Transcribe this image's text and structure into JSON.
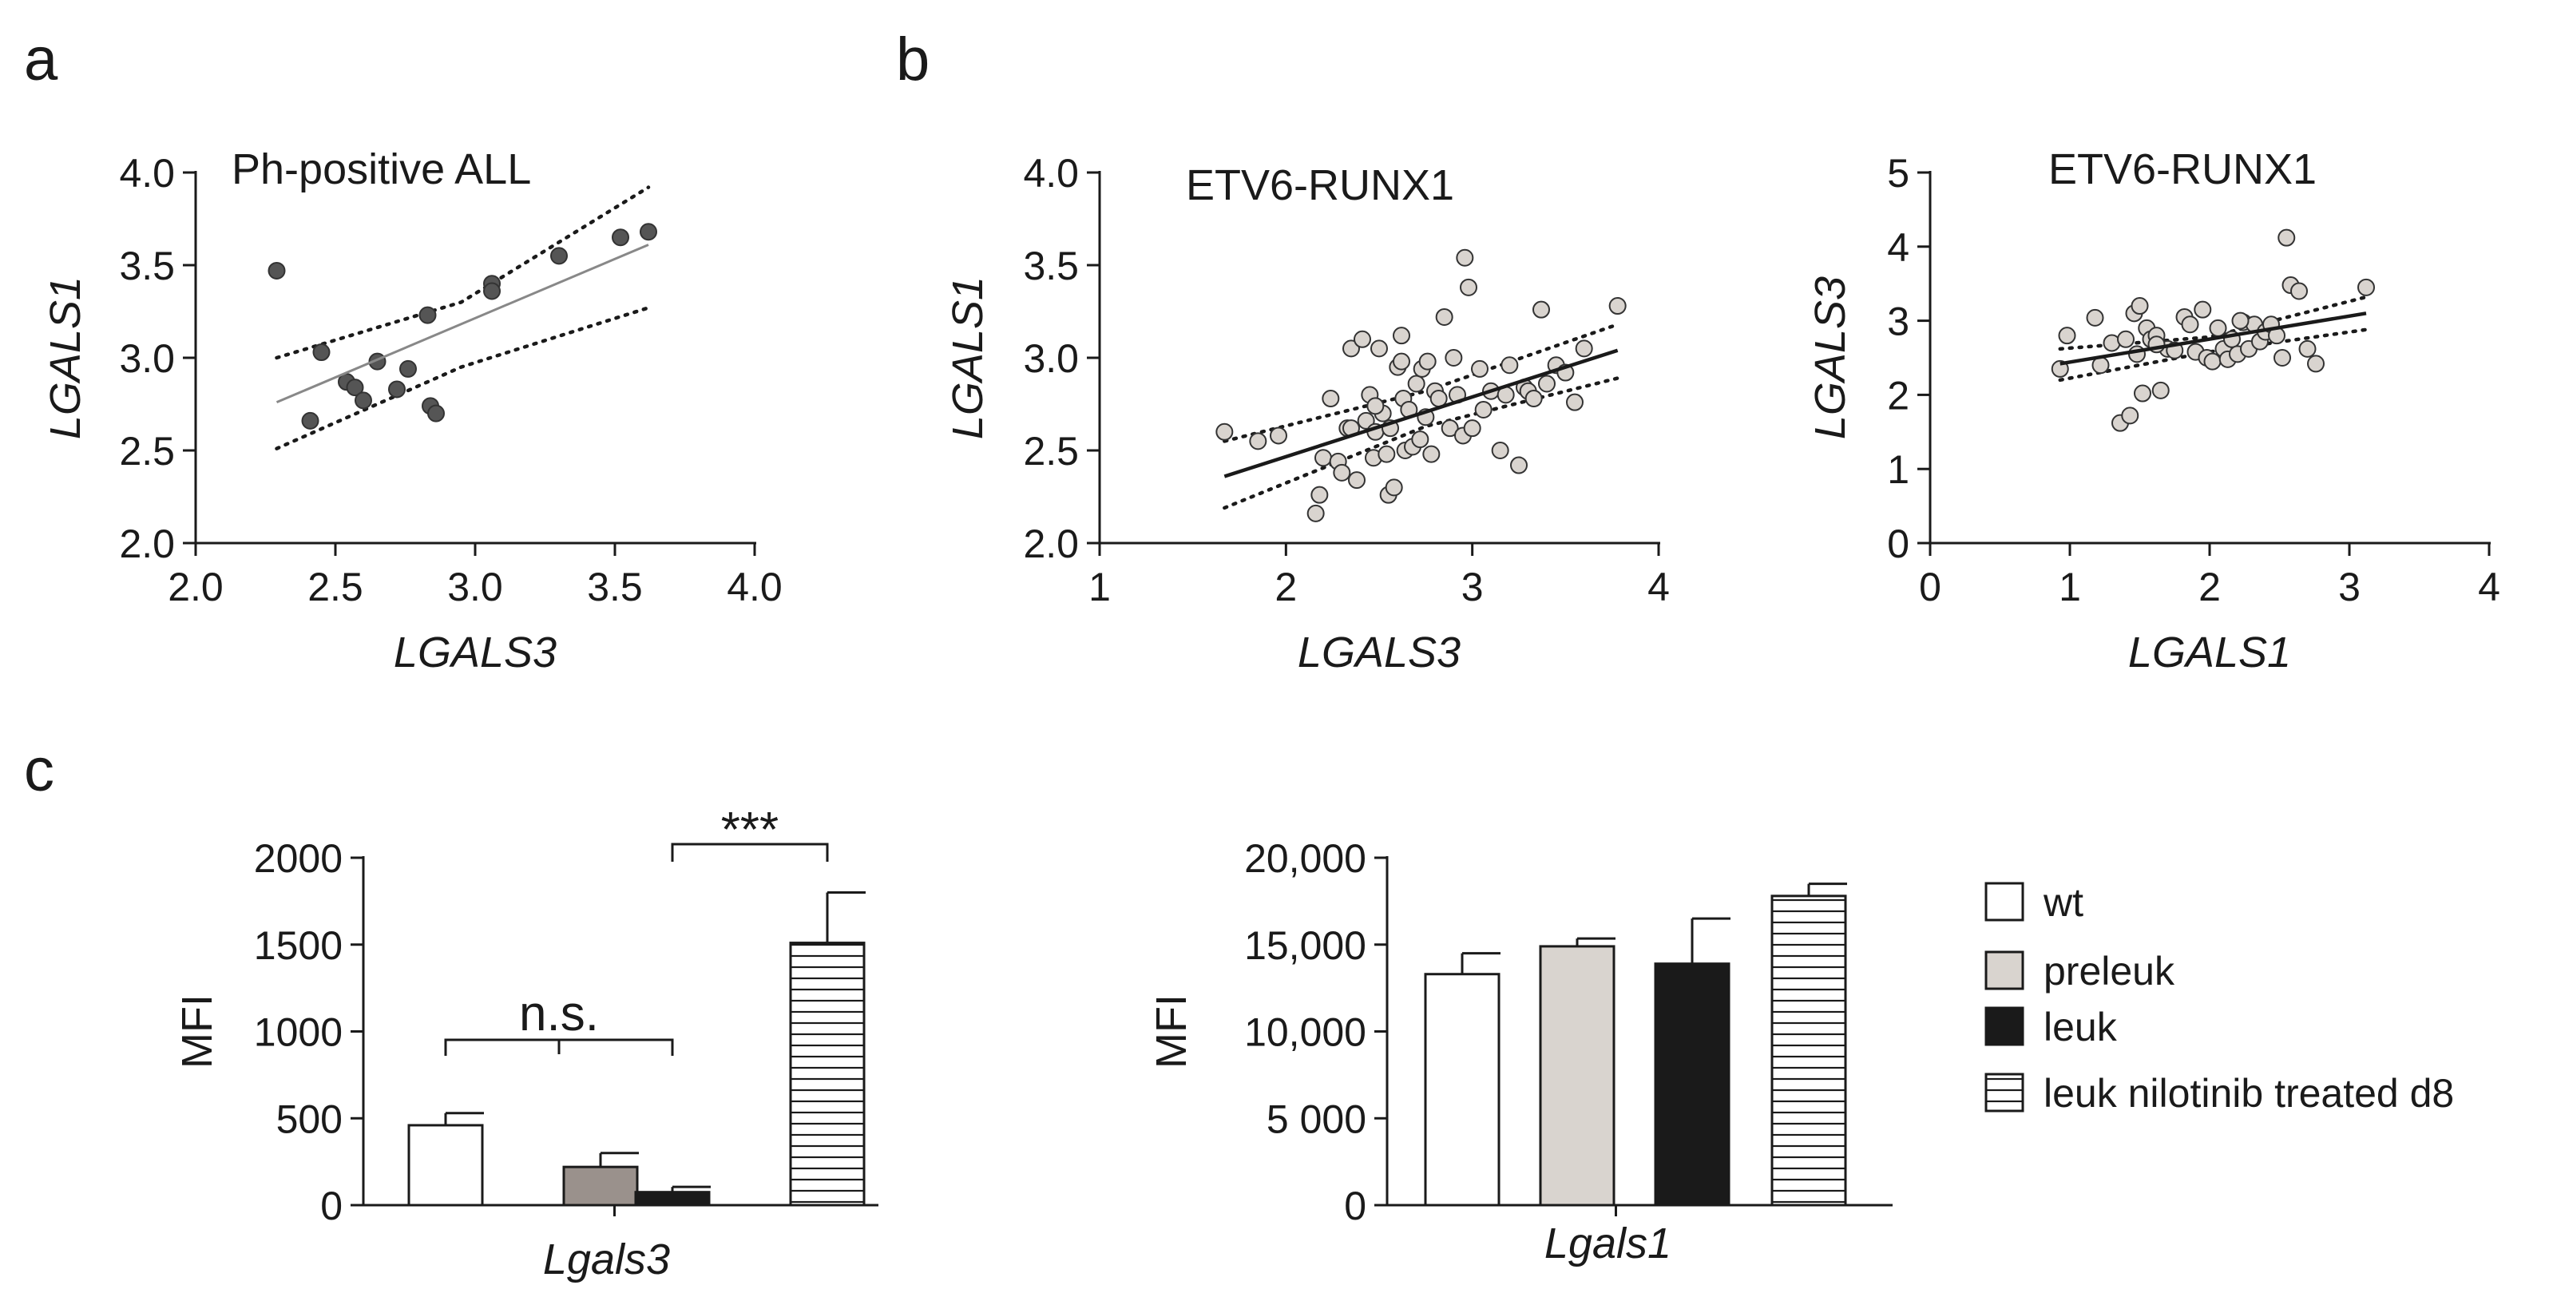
{
  "panels": {
    "a": {
      "letter": "a"
    },
    "b": {
      "letter": "b"
    },
    "c": {
      "letter": "c"
    }
  },
  "chart_data": [
    {
      "id": "a",
      "type": "scatter",
      "title": "Ph-positive ALL",
      "xlabel": "LGALS3",
      "ylabel": "LGALS1",
      "xlim": [
        2.0,
        4.0
      ],
      "ylim": [
        2.0,
        4.0
      ],
      "xticks": [
        "2.0",
        "2.5",
        "3.0",
        "3.5",
        "4.0"
      ],
      "yticks": [
        "2.0",
        "2.5",
        "3.0",
        "3.5",
        "4.0"
      ],
      "point_color": "#555555",
      "fit_color": "#888888",
      "x": [
        2.29,
        2.41,
        2.45,
        2.54,
        2.57,
        2.6,
        2.65,
        2.72,
        2.76,
        2.83,
        2.84,
        2.86,
        3.06,
        3.06,
        3.3,
        3.52,
        3.62
      ],
      "y": [
        3.47,
        2.66,
        3.03,
        2.87,
        2.84,
        2.77,
        2.98,
        2.83,
        2.94,
        3.23,
        2.74,
        2.7,
        3.4,
        3.36,
        3.55,
        3.65,
        3.68
      ],
      "fit_line": {
        "x": [
          2.29,
          3.62
        ],
        "y": [
          2.76,
          3.61
        ]
      },
      "ci_upper": {
        "x": [
          2.29,
          2.95,
          3.62
        ],
        "y": [
          3.0,
          3.3,
          3.92
        ]
      },
      "ci_lower": {
        "x": [
          2.29,
          2.95,
          3.62
        ],
        "y": [
          2.51,
          2.95,
          3.27
        ]
      }
    },
    {
      "id": "b1",
      "type": "scatter",
      "title": "ETV6-RUNX1",
      "xlabel": "LGALS3",
      "ylabel": "LGALS1",
      "xlim": [
        1,
        4
      ],
      "ylim": [
        2.0,
        4.0
      ],
      "xticks": [
        "1",
        "2",
        "3",
        "4"
      ],
      "yticks": [
        "2.0",
        "2.5",
        "3.0",
        "3.5",
        "4.0"
      ],
      "point_color": "#d9d4cf",
      "fit_color": "#1a1a1a",
      "x": [
        1.67,
        1.85,
        1.96,
        2.16,
        2.18,
        2.2,
        2.24,
        2.28,
        2.3,
        2.33,
        2.35,
        2.38,
        2.41,
        2.43,
        2.45,
        2.47,
        2.48,
        2.5,
        2.52,
        2.54,
        2.55,
        2.56,
        2.58,
        2.6,
        2.62,
        2.63,
        2.64,
        2.66,
        2.68,
        2.7,
        2.72,
        2.73,
        2.75,
        2.78,
        2.8,
        2.82,
        2.85,
        2.88,
        2.92,
        2.95,
        2.98,
        3.0,
        3.04,
        3.06,
        3.1,
        3.15,
        3.18,
        3.2,
        3.25,
        3.28,
        3.3,
        3.33,
        3.37,
        3.4,
        3.45,
        3.5,
        3.55,
        3.6,
        3.78,
        2.96,
        2.62,
        2.76,
        2.35,
        2.48,
        2.9
      ],
      "y": [
        2.6,
        2.55,
        2.58,
        2.16,
        2.26,
        2.46,
        2.78,
        2.44,
        2.38,
        2.62,
        3.05,
        2.34,
        3.1,
        2.66,
        2.8,
        2.46,
        2.6,
        3.05,
        2.7,
        2.48,
        2.26,
        2.62,
        2.3,
        2.95,
        3.12,
        2.78,
        2.5,
        2.72,
        2.52,
        2.86,
        2.56,
        2.94,
        2.68,
        2.48,
        2.82,
        2.78,
        3.22,
        2.62,
        2.8,
        2.58,
        3.38,
        2.62,
        2.94,
        2.72,
        2.82,
        2.5,
        2.8,
        2.96,
        2.42,
        2.84,
        2.82,
        2.78,
        3.26,
        2.86,
        2.96,
        2.92,
        2.76,
        3.05,
        3.28,
        3.54,
        2.98,
        2.98,
        2.62,
        2.74,
        3.0
      ],
      "fit_line": {
        "x": [
          1.67,
          3.78
        ],
        "y": [
          2.36,
          3.04
        ]
      },
      "ci_upper": {
        "x": [
          1.67,
          2.75,
          3.78
        ],
        "y": [
          2.55,
          2.82,
          3.18
        ]
      },
      "ci_lower": {
        "x": [
          1.67,
          2.75,
          3.78
        ],
        "y": [
          2.19,
          2.63,
          2.89
        ]
      }
    },
    {
      "id": "b2",
      "type": "scatter",
      "title": "ETV6-RUNX1",
      "xlabel": "LGALS1",
      "ylabel": "LGALS3",
      "xlim": [
        0,
        4
      ],
      "ylim": [
        0,
        5
      ],
      "xticks": [
        "0",
        "1",
        "2",
        "3",
        "4"
      ],
      "yticks": [
        "0",
        "1",
        "2",
        "3",
        "4",
        "5"
      ],
      "point_color": "#d9d4cf",
      "fit_color": "#1a1a1a",
      "x": [
        0.93,
        0.98,
        1.18,
        1.22,
        1.3,
        1.36,
        1.4,
        1.43,
        1.46,
        1.48,
        1.5,
        1.52,
        1.55,
        1.58,
        1.62,
        1.65,
        1.7,
        1.75,
        1.82,
        1.86,
        1.9,
        1.95,
        1.98,
        2.02,
        2.06,
        2.1,
        2.13,
        2.16,
        2.2,
        2.24,
        2.28,
        2.32,
        2.36,
        2.4,
        2.44,
        2.48,
        2.52,
        2.55,
        2.58,
        2.64,
        2.7,
        2.76,
        3.12,
        1.62,
        2.22
      ],
      "y": [
        2.35,
        2.8,
        3.04,
        2.4,
        2.7,
        1.62,
        2.75,
        1.72,
        3.1,
        2.55,
        3.2,
        2.02,
        2.9,
        2.75,
        2.8,
        2.06,
        2.62,
        2.6,
        3.05,
        2.95,
        2.58,
        3.15,
        2.5,
        2.45,
        2.9,
        2.62,
        2.48,
        2.75,
        2.55,
        2.98,
        2.62,
        2.95,
        2.72,
        2.85,
        2.95,
        2.8,
        2.5,
        4.12,
        3.48,
        3.4,
        2.62,
        2.42,
        3.45,
        2.68,
        3.0
      ],
      "fit_line": {
        "x": [
          0.93,
          3.12
        ],
        "y": [
          2.42,
          3.1
        ]
      },
      "ci_upper": {
        "x": [
          0.93,
          2.0,
          3.12
        ],
        "y": [
          2.62,
          2.78,
          3.32
        ]
      },
      "ci_lower": {
        "x": [
          0.93,
          2.0,
          3.12
        ],
        "y": [
          2.2,
          2.58,
          2.88
        ]
      }
    },
    {
      "id": "c1",
      "type": "bar",
      "xlabel": "Lgals3",
      "ylabel": "MFI",
      "ylim": [
        0,
        2000
      ],
      "yticks": [
        "0",
        "500",
        "1000",
        "1500",
        "2000"
      ],
      "categories": [
        "wt",
        "preleuk",
        "leuk",
        "leuk nilotinib treated d8"
      ],
      "values": [
        460,
        220,
        75,
        1510
      ],
      "errors": [
        70,
        80,
        30,
        290
      ],
      "fills": [
        "#ffffff",
        "#9a918c",
        "#1a1a1a",
        "stripes"
      ],
      "annotations": [
        {
          "label": "n.s.",
          "from": 0,
          "to": 2
        },
        {
          "label": "***",
          "from": 2,
          "to": 3
        }
      ]
    },
    {
      "id": "c2",
      "type": "bar",
      "xlabel": "Lgals1",
      "ylabel": "MFI",
      "ylim": [
        0,
        20000
      ],
      "yticks": [
        "0",
        "5 000",
        "10,000",
        "15,000",
        "20,000"
      ],
      "categories": [
        "wt",
        "preleuk",
        "leuk",
        "leuk nilotinib treated d8"
      ],
      "values": [
        13300,
        14900,
        13900,
        17800
      ],
      "errors": [
        1200,
        450,
        2600,
        700
      ],
      "fills": [
        "#ffffff",
        "#d9d4cf",
        "#1a1a1a",
        "stripes"
      ]
    }
  ],
  "legend": {
    "items": [
      {
        "label": "wt",
        "fill": "#ffffff"
      },
      {
        "label": "preleuk",
        "fill": "#d9d4cf"
      },
      {
        "label": "leuk",
        "fill": "#1a1a1a"
      },
      {
        "label": "leuk nilotinib treated d8",
        "fill": "stripes"
      }
    ]
  }
}
